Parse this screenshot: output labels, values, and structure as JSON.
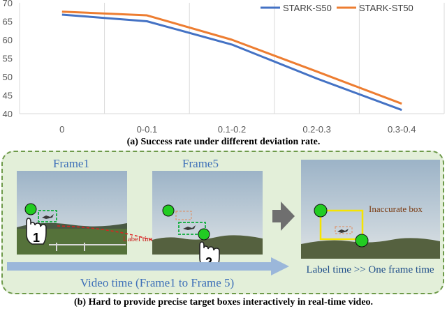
{
  "chart_data": {
    "type": "line",
    "categories": [
      "0",
      "0-0.1",
      "0.1-0.2",
      "0.2-0.3",
      "0.3-0.4"
    ],
    "series": [
      {
        "name": "STARK-S50",
        "color": "#4472c4",
        "values": [
          66.8,
          65.0,
          58.7,
          49.5,
          41.0
        ]
      },
      {
        "name": "STARK-ST50",
        "color": "#ed7d31",
        "values": [
          67.6,
          66.6,
          60.0,
          51.4,
          42.7
        ]
      }
    ],
    "ylim": [
      40,
      70
    ],
    "yticks": [
      40,
      45,
      50,
      55,
      60,
      65,
      70
    ],
    "grid": "vertical",
    "legend_position": "top-right",
    "caption": "(a) Success rate under different deviation rate."
  },
  "panel_b": {
    "frame1_label": "Frame1",
    "frame5_label": "Frame5",
    "label_time": "Label time",
    "inaccurate_box": "Inaccurate box",
    "timeline_label": "Video time (Frame1 to Frame 5)",
    "comparison": "Label time >> One frame time",
    "hand1_number": "1",
    "hand2_number": "2",
    "caption": "(b) Hard to provide precise target boxes interactively in real-time video.",
    "colors": {
      "panel_bg": "#e3efd9",
      "panel_border": "#6e9a4a",
      "box_green": "#22b14c",
      "dot_green": "#22cc22",
      "box_yellow": "#f5e400",
      "arrow_blue": "#9bb7da",
      "curve_red": "#e02020"
    }
  }
}
